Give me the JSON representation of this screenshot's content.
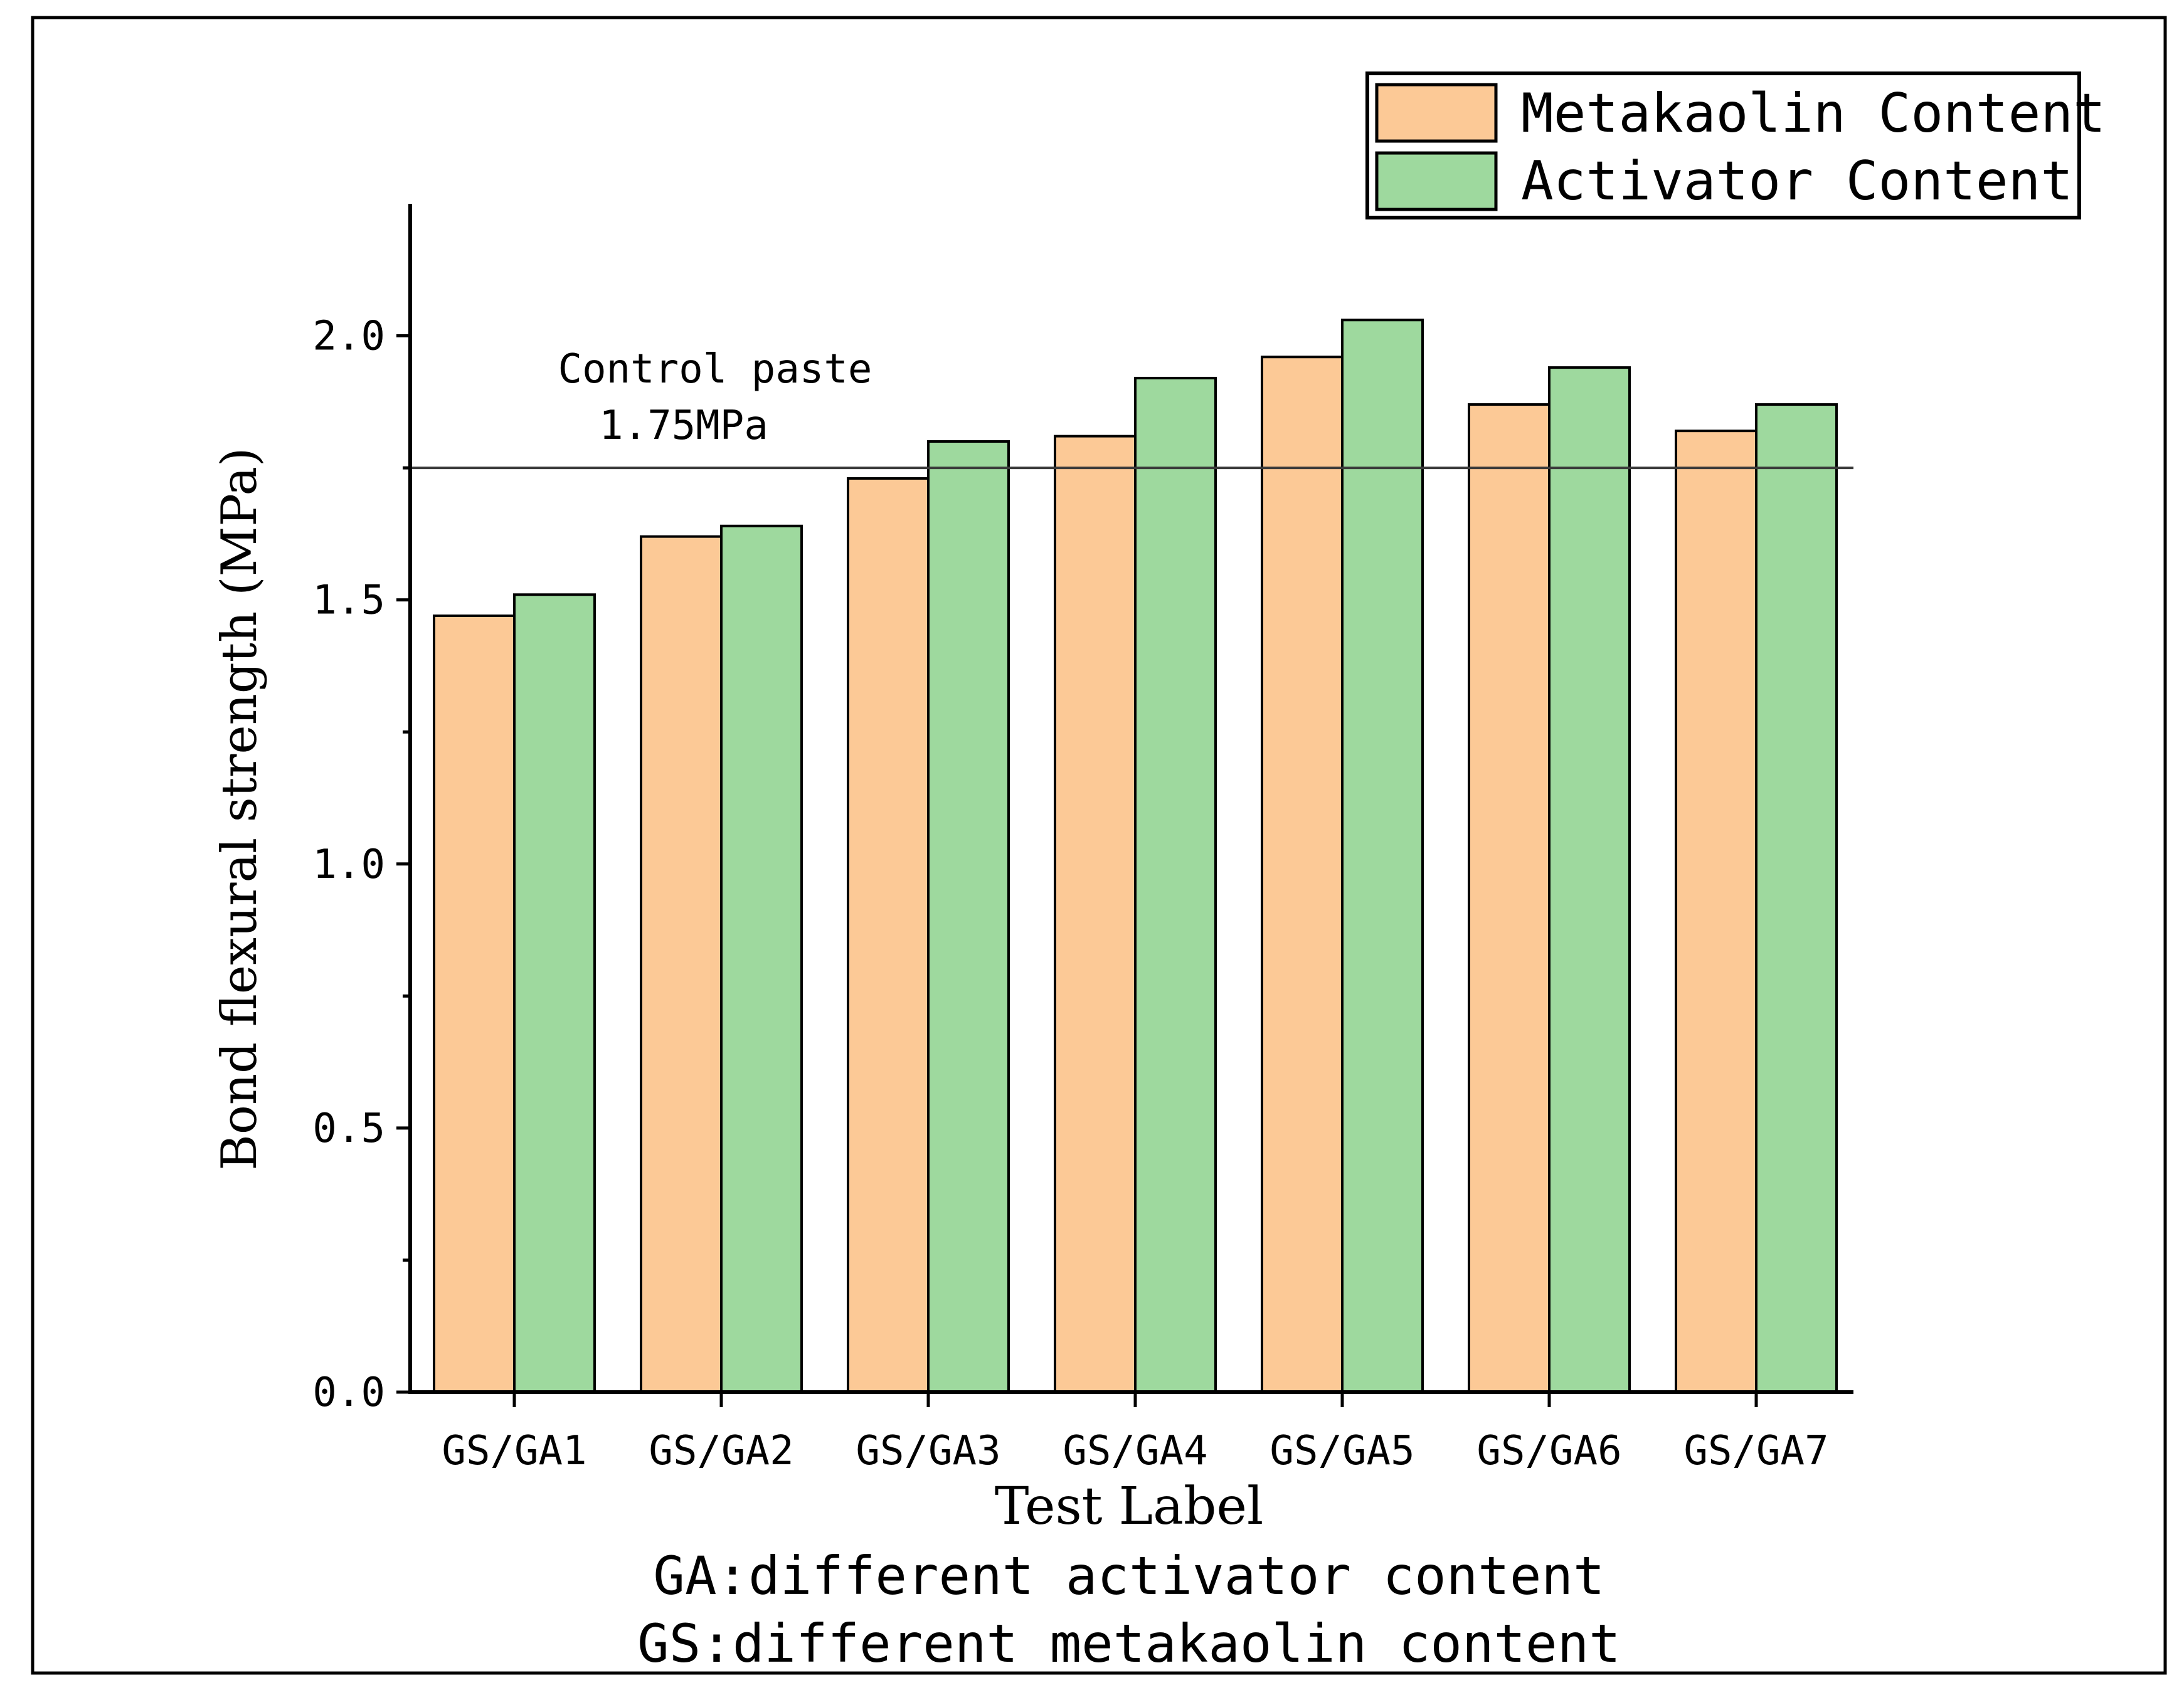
{
  "chart_data": {
    "type": "bar",
    "categories": [
      "GS/GA1",
      "GS/GA2",
      "GS/GA3",
      "GS/GA4",
      "GS/GA5",
      "GS/GA6",
      "GS/GA7"
    ],
    "series": [
      {
        "name": "Metakaolin Content",
        "color": "#fcc996",
        "values": [
          1.47,
          1.62,
          1.73,
          1.81,
          1.96,
          1.87,
          1.82
        ]
      },
      {
        "name": "Activator Content",
        "color": "#9ed99e",
        "values": [
          1.51,
          1.64,
          1.8,
          1.92,
          2.03,
          1.94,
          1.87
        ]
      }
    ],
    "ylabel": "Bond flexural strength (MPa)",
    "xlabel": "Test Label",
    "ylim": [
      0,
      2.25
    ],
    "yticks": [
      "0.0",
      "0.5",
      "1.0",
      "1.5",
      "2.0"
    ],
    "reference_line": {
      "value": 1.75,
      "label_line1": "Control paste",
      "label_line2": "1.75MPa"
    },
    "footnotes": [
      "GA:different activator content",
      "GS:different metakaolin content"
    ],
    "legend_position": "top-right"
  }
}
